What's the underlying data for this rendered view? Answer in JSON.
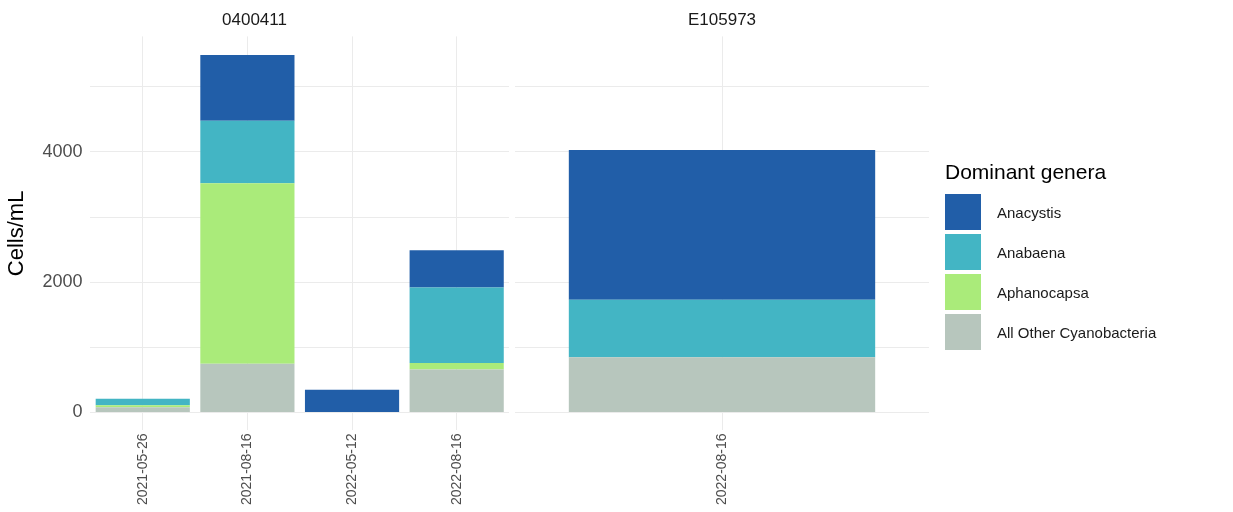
{
  "chart_data": [
    {
      "type": "bar",
      "title": "0400411",
      "ylabel": "Cells/mL",
      "stacked": true,
      "grid": true,
      "legend": "right",
      "categories": [
        "2021-05-26",
        "2021-08-16",
        "2022-05-12",
        "2022-08-16"
      ],
      "ylim": [
        -275,
        5775
      ],
      "yticks": [
        0,
        {
          "value": 1000,
          "label": null
        },
        2000,
        {
          "value": 3000,
          "label": null
        },
        4000,
        {
          "value": 5000,
          "label": null
        }
      ],
      "series": [
        {
          "name": "All Other Cyanobacteria",
          "color": "#b7c6bd",
          "values": [
            80,
            750,
            null,
            660
          ]
        },
        {
          "name": "Aphanocapsa",
          "color": "#aaeb7a",
          "values": [
            30,
            2770,
            null,
            100
          ]
        },
        {
          "name": "Anabaena",
          "color": "#43b5c4",
          "values": [
            100,
            960,
            null,
            1160
          ]
        },
        {
          "name": "Anacystis",
          "color": "#215ea8",
          "values": [
            null,
            1010,
            350,
            570
          ]
        }
      ]
    },
    {
      "type": "bar",
      "title": "E105973",
      "stacked": true,
      "grid": true,
      "legend": "right",
      "legend_title": "Dominant genera",
      "tick_labels": "x",
      "categories": [
        "2022-08-16"
      ],
      "ylim": [
        -275,
        5775
      ],
      "yticks": [
        0,
        {
          "value": 1000,
          "label": null
        },
        2000,
        {
          "value": 3000,
          "label": null
        },
        4000,
        {
          "value": 5000,
          "label": null
        }
      ],
      "series": [
        {
          "name": "All Other Cyanobacteria",
          "color": "#b7c6bd",
          "values": [
            850
          ]
        },
        {
          "name": "Anabaena",
          "color": "#43b5c4",
          "values": [
            880
          ]
        },
        {
          "name": "Anacystis",
          "color": "#215ea8",
          "values": [
            2300
          ]
        }
      ]
    }
  ]
}
